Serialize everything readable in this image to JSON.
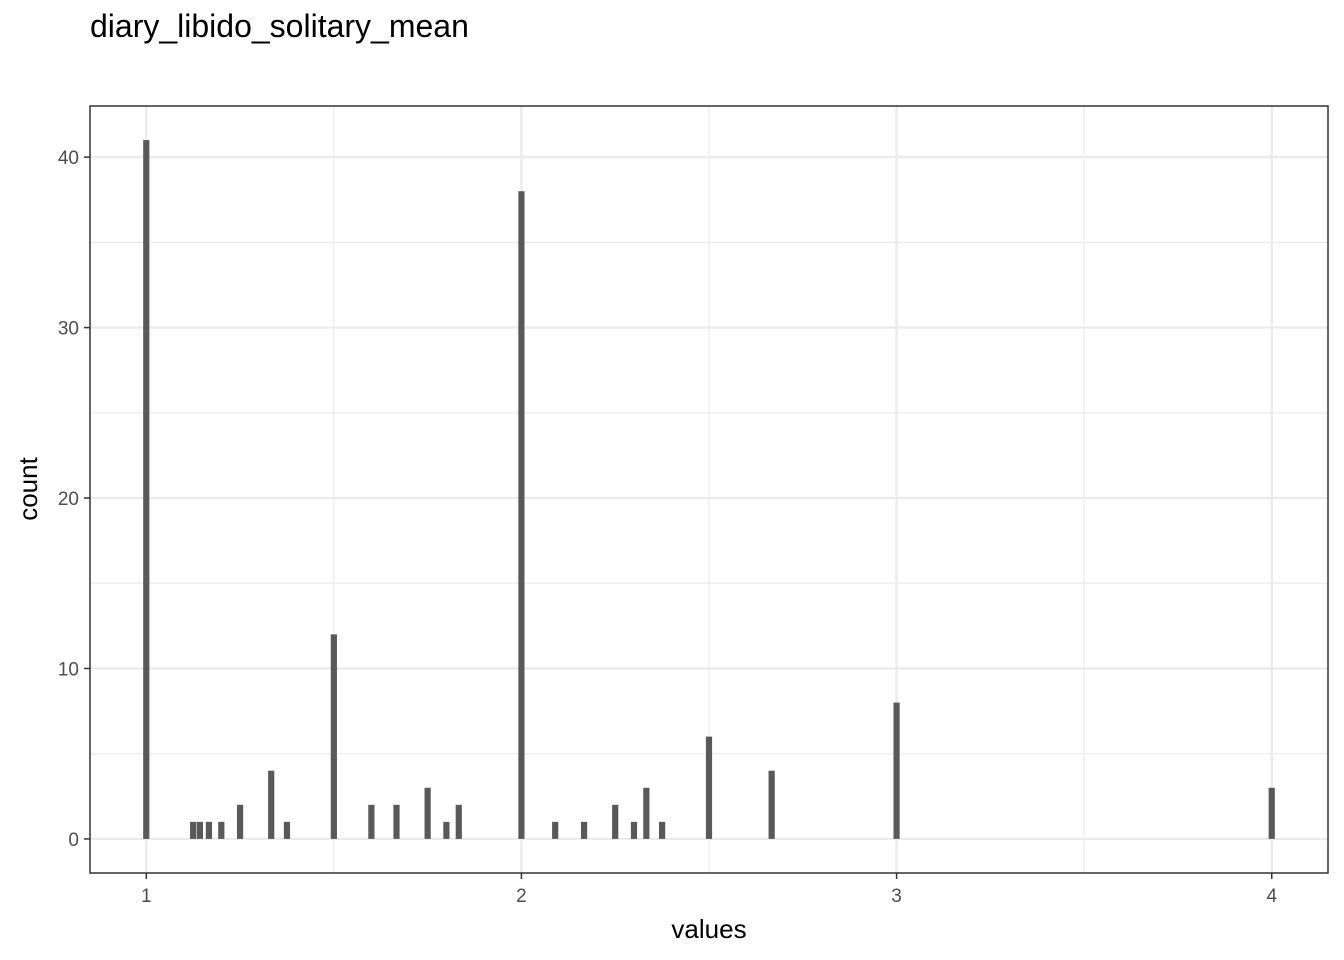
{
  "chart_data": {
    "type": "bar",
    "title": "diary_libido_solitary_mean",
    "xlabel": "values",
    "ylabel": "count",
    "xlim": [
      0.85,
      4.15
    ],
    "ylim": [
      -2,
      43
    ],
    "x_ticks": [
      1,
      2,
      3,
      4
    ],
    "y_ticks": [
      0,
      10,
      20,
      30,
      40
    ],
    "grid": true,
    "bar_color": "#595959",
    "bars": [
      {
        "x": 1.0,
        "count": 41
      },
      {
        "x": 1.125,
        "count": 1
      },
      {
        "x": 1.143,
        "count": 1
      },
      {
        "x": 1.167,
        "count": 1
      },
      {
        "x": 1.2,
        "count": 1
      },
      {
        "x": 1.25,
        "count": 2
      },
      {
        "x": 1.333,
        "count": 4
      },
      {
        "x": 1.375,
        "count": 1
      },
      {
        "x": 1.5,
        "count": 12
      },
      {
        "x": 1.6,
        "count": 2
      },
      {
        "x": 1.667,
        "count": 2
      },
      {
        "x": 1.75,
        "count": 3
      },
      {
        "x": 1.8,
        "count": 1
      },
      {
        "x": 1.833,
        "count": 2
      },
      {
        "x": 2.0,
        "count": 38
      },
      {
        "x": 2.09,
        "count": 1
      },
      {
        "x": 2.167,
        "count": 1
      },
      {
        "x": 2.25,
        "count": 2
      },
      {
        "x": 2.3,
        "count": 1
      },
      {
        "x": 2.333,
        "count": 3
      },
      {
        "x": 2.375,
        "count": 1
      },
      {
        "x": 2.5,
        "count": 6
      },
      {
        "x": 2.667,
        "count": 4
      },
      {
        "x": 3.0,
        "count": 8
      },
      {
        "x": 4.0,
        "count": 3
      }
    ]
  }
}
